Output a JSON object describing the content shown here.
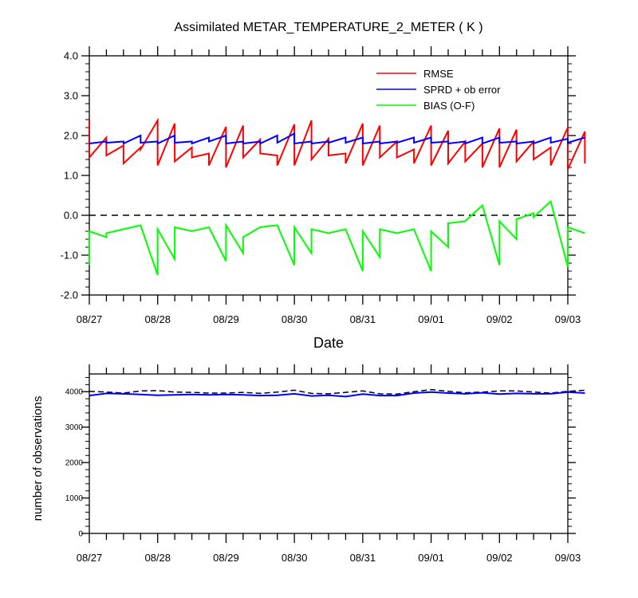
{
  "chart_data": [
    {
      "type": "line",
      "title": "Assimilated METAR_TEMPERATURE_2_METER ( K )",
      "xlabel": "Date",
      "ylabel": "",
      "xlim": [
        "08/27",
        "09/03"
      ],
      "ylim": [
        -2.0,
        4.0
      ],
      "x_ticks": [
        "08/27",
        "08/28",
        "08/29",
        "08/30",
        "08/31",
        "09/01",
        "09/02",
        "09/03"
      ],
      "y_ticks": [
        "-2.0",
        "-1.0",
        "0.0",
        "1.0",
        "2.0",
        "3.0",
        "4.0"
      ],
      "legend_position": "top-right",
      "zero_reference_line": {
        "y": 0.0,
        "style": "dashed",
        "color": "#000000"
      },
      "series": [
        {
          "name": "RMSE",
          "color": "#ff0000",
          "points": [
            [
              "08/27 00:00",
              2.4
            ],
            [
              "08/27 00:00",
              1.45
            ],
            [
              "08/27 06:00",
              1.95
            ],
            [
              "08/27 06:00",
              1.5
            ],
            [
              "08/27 12:00",
              1.75
            ],
            [
              "08/27 12:00",
              1.3
            ],
            [
              "08/27 18:00",
              1.7
            ],
            [
              "08/27 18:00",
              1.65
            ],
            [
              "08/28 00:00",
              2.38
            ],
            [
              "08/28 00:00",
              1.25
            ],
            [
              "08/28 06:00",
              2.3
            ],
            [
              "08/28 06:00",
              1.35
            ],
            [
              "08/28 12:00",
              1.7
            ],
            [
              "08/28 12:00",
              1.45
            ],
            [
              "08/28 18:00",
              1.55
            ],
            [
              "08/28 18:00",
              1.25
            ],
            [
              "08/29 00:00",
              2.22
            ],
            [
              "08/29 00:00",
              1.2
            ],
            [
              "08/29 06:00",
              2.25
            ],
            [
              "08/29 06:00",
              1.45
            ],
            [
              "08/29 12:00",
              1.9
            ],
            [
              "08/29 12:00",
              1.55
            ],
            [
              "08/29 18:00",
              1.5
            ],
            [
              "08/29 18:00",
              1.25
            ],
            [
              "08/30 00:00",
              2.28
            ],
            [
              "08/30 00:00",
              1.25
            ],
            [
              "08/30 06:00",
              2.38
            ],
            [
              "08/30 06:00",
              1.4
            ],
            [
              "08/30 12:00",
              1.92
            ],
            [
              "08/30 12:00",
              1.5
            ],
            [
              "08/30 18:00",
              1.55
            ],
            [
              "08/30 18:00",
              1.3
            ],
            [
              "08/31 00:00",
              2.3
            ],
            [
              "08/31 00:00",
              1.25
            ],
            [
              "08/31 06:00",
              2.25
            ],
            [
              "08/31 06:00",
              1.45
            ],
            [
              "08/31 12:00",
              1.85
            ],
            [
              "08/31 12:00",
              1.45
            ],
            [
              "08/31 18:00",
              1.65
            ],
            [
              "08/31 18:00",
              1.3
            ],
            [
              "09/01 00:00",
              2.25
            ],
            [
              "09/01 00:00",
              1.25
            ],
            [
              "09/01 06:00",
              2.12
            ],
            [
              "09/01 06:00",
              1.3
            ],
            [
              "09/01 12:00",
              1.85
            ],
            [
              "09/01 12:00",
              1.35
            ],
            [
              "09/01 18:00",
              1.8
            ],
            [
              "09/01 18:00",
              1.2
            ],
            [
              "09/02 00:00",
              2.18
            ],
            [
              "09/02 00:00",
              1.2
            ],
            [
              "09/02 06:00",
              2.15
            ],
            [
              "09/02 06:00",
              1.35
            ],
            [
              "09/02 12:00",
              1.85
            ],
            [
              "09/02 12:00",
              1.4
            ],
            [
              "09/02 18:00",
              1.7
            ],
            [
              "09/02 18:00",
              1.25
            ],
            [
              "09/03 00:00",
              2.2
            ],
            [
              "09/03 00:00",
              1.15
            ],
            [
              "09/03 06:00",
              2.1
            ],
            [
              "09/03 06:00",
              1.3
            ]
          ]
        },
        {
          "name": "SPRD + ob error",
          "color": "#0000ff",
          "points": [
            [
              "08/27 00:00",
              1.8
            ],
            [
              "08/27 06:00",
              1.85
            ],
            [
              "08/27 06:00",
              1.82
            ],
            [
              "08/27 12:00",
              1.85
            ],
            [
              "08/27 12:00",
              1.8
            ],
            [
              "08/27 18:00",
              2.0
            ],
            [
              "08/27 18:00",
              1.82
            ],
            [
              "08/28 00:00",
              1.85
            ],
            [
              "08/28 00:00",
              1.8
            ],
            [
              "08/28 06:00",
              2.0
            ],
            [
              "08/28 06:00",
              1.82
            ],
            [
              "08/28 12:00",
              1.85
            ],
            [
              "08/28 12:00",
              1.8
            ],
            [
              "08/28 18:00",
              1.95
            ],
            [
              "08/28 18:00",
              1.85
            ],
            [
              "08/29 00:00",
              2.0
            ],
            [
              "08/29 00:00",
              1.8
            ],
            [
              "08/29 06:00",
              1.85
            ],
            [
              "08/29 06:00",
              1.8
            ],
            [
              "08/29 12:00",
              1.85
            ],
            [
              "08/29 12:00",
              1.8
            ],
            [
              "08/29 18:00",
              2.0
            ],
            [
              "08/29 18:00",
              1.82
            ],
            [
              "08/30 00:00",
              2.05
            ],
            [
              "08/30 00:00",
              1.8
            ],
            [
              "08/30 06:00",
              1.85
            ],
            [
              "08/30 06:00",
              1.8
            ],
            [
              "08/30 12:00",
              1.85
            ],
            [
              "08/30 12:00",
              1.82
            ],
            [
              "08/30 18:00",
              1.95
            ],
            [
              "08/30 18:00",
              1.82
            ],
            [
              "08/31 00:00",
              1.95
            ],
            [
              "08/31 00:00",
              1.8
            ],
            [
              "08/31 06:00",
              1.85
            ],
            [
              "08/31 06:00",
              1.8
            ],
            [
              "08/31 12:00",
              1.85
            ],
            [
              "08/31 12:00",
              1.82
            ],
            [
              "08/31 18:00",
              1.95
            ],
            [
              "08/31 18:00",
              1.82
            ],
            [
              "09/01 00:00",
              1.95
            ],
            [
              "09/01 00:00",
              1.82
            ],
            [
              "09/01 06:00",
              1.85
            ],
            [
              "09/01 06:00",
              1.8
            ],
            [
              "09/01 12:00",
              1.85
            ],
            [
              "09/01 12:00",
              1.8
            ],
            [
              "09/01 18:00",
              1.95
            ],
            [
              "09/01 18:00",
              1.8
            ],
            [
              "09/02 00:00",
              1.95
            ],
            [
              "09/02 00:00",
              1.82
            ],
            [
              "09/02 06:00",
              1.85
            ],
            [
              "09/02 06:00",
              1.8
            ],
            [
              "09/02 12:00",
              1.85
            ],
            [
              "09/02 12:00",
              1.8
            ],
            [
              "09/02 18:00",
              1.95
            ],
            [
              "09/02 18:00",
              1.82
            ],
            [
              "09/03 00:00",
              1.92
            ],
            [
              "09/03 00:00",
              1.82
            ],
            [
              "09/03 06:00",
              1.95
            ]
          ]
        },
        {
          "name": "BIAS (O-F)",
          "color": "#00ff00",
          "points": [
            [
              "08/27 00:00",
              -1.25
            ],
            [
              "08/27 00:00",
              -0.4
            ],
            [
              "08/27 06:00",
              -0.55
            ],
            [
              "08/27 06:00",
              -0.45
            ],
            [
              "08/27 12:00",
              -0.35
            ],
            [
              "08/27 18:00",
              -0.25
            ],
            [
              "08/28 00:00",
              -1.5
            ],
            [
              "08/28 00:00",
              -0.35
            ],
            [
              "08/28 06:00",
              -1.1
            ],
            [
              "08/28 06:00",
              -0.3
            ],
            [
              "08/28 12:00",
              -0.4
            ],
            [
              "08/28 18:00",
              -0.3
            ],
            [
              "08/29 00:00",
              -1.15
            ],
            [
              "08/29 00:00",
              -0.25
            ],
            [
              "08/29 06:00",
              -0.95
            ],
            [
              "08/29 06:00",
              -0.55
            ],
            [
              "08/29 12:00",
              -0.3
            ],
            [
              "08/29 18:00",
              -0.25
            ],
            [
              "08/30 00:00",
              -1.25
            ],
            [
              "08/30 00:00",
              -0.3
            ],
            [
              "08/30 06:00",
              -0.95
            ],
            [
              "08/30 06:00",
              -0.35
            ],
            [
              "08/30 12:00",
              -0.45
            ],
            [
              "08/30 18:00",
              -0.35
            ],
            [
              "08/31 00:00",
              -1.4
            ],
            [
              "08/31 00:00",
              -0.4
            ],
            [
              "08/31 06:00",
              -1.05
            ],
            [
              "08/31 06:00",
              -0.35
            ],
            [
              "08/31 12:00",
              -0.45
            ],
            [
              "08/31 18:00",
              -0.35
            ],
            [
              "09/01 00:00",
              -1.4
            ],
            [
              "09/01 00:00",
              -0.4
            ],
            [
              "09/01 06:00",
              -0.8
            ],
            [
              "09/01 06:00",
              -0.2
            ],
            [
              "09/01 12:00",
              -0.15
            ],
            [
              "09/01 18:00",
              0.25
            ],
            [
              "09/02 00:00",
              -1.25
            ],
            [
              "09/02 00:00",
              -0.15
            ],
            [
              "09/02 06:00",
              -0.6
            ],
            [
              "09/02 06:00",
              -0.1
            ],
            [
              "09/02 12:00",
              0.05
            ],
            [
              "09/02 12:00",
              -0.05
            ],
            [
              "09/02 18:00",
              0.35
            ],
            [
              "09/03 00:00",
              -1.3
            ],
            [
              "09/03 00:00",
              -0.3
            ],
            [
              "09/03 06:00",
              -0.45
            ]
          ]
        }
      ]
    },
    {
      "type": "line",
      "title": "",
      "xlabel": "",
      "ylabel": "number of observations",
      "xlim": [
        "08/27",
        "09/03"
      ],
      "ylim": [
        0,
        4500
      ],
      "x_ticks": [
        "08/27",
        "08/28",
        "08/29",
        "08/30",
        "08/31",
        "09/01",
        "09/02",
        "09/03"
      ],
      "y_ticks": [
        "0",
        "1000",
        "2000",
        "3000",
        "4000"
      ],
      "grid": false,
      "series": [
        {
          "color": "#000000",
          "style": "dashed",
          "x": [
            "08/27 00:00",
            "08/27 06:00",
            "08/27 12:00",
            "08/27 18:00",
            "08/28 00:00",
            "08/28 06:00",
            "08/28 12:00",
            "08/28 18:00",
            "08/29 00:00",
            "08/29 06:00",
            "08/29 12:00",
            "08/29 18:00",
            "08/30 00:00",
            "08/30 06:00",
            "08/30 12:00",
            "08/30 18:00",
            "08/31 00:00",
            "08/31 06:00",
            "08/31 12:00",
            "08/31 18:00",
            "09/01 00:00",
            "09/01 06:00",
            "09/01 12:00",
            "09/01 18:00",
            "09/02 00:00",
            "09/02 06:00",
            "09/02 12:00",
            "09/02 18:00",
            "09/03 00:00",
            "09/03 06:00"
          ],
          "values": [
            4010,
            3990,
            3960,
            4020,
            4030,
            3990,
            3980,
            3960,
            3960,
            3980,
            3950,
            3990,
            4040,
            3950,
            3940,
            3980,
            4020,
            3940,
            3930,
            4000,
            4060,
            4010,
            3970,
            3990,
            4020,
            4020,
            3990,
            3960,
            4010,
            4040
          ]
        },
        {
          "color": "#0000ff",
          "style": "solid",
          "x": [
            "08/27 00:00",
            "08/27 06:00",
            "08/27 12:00",
            "08/27 18:00",
            "08/28 00:00",
            "08/28 06:00",
            "08/28 12:00",
            "08/28 18:00",
            "08/29 00:00",
            "08/29 06:00",
            "08/29 12:00",
            "08/29 18:00",
            "08/30 00:00",
            "08/30 06:00",
            "08/30 12:00",
            "08/30 18:00",
            "08/31 00:00",
            "08/31 06:00",
            "08/31 12:00",
            "08/31 18:00",
            "09/01 00:00",
            "09/01 06:00",
            "09/01 12:00",
            "09/01 18:00",
            "09/02 00:00",
            "09/02 06:00",
            "09/02 12:00",
            "09/02 18:00",
            "09/03 00:00",
            "09/03 06:00"
          ],
          "values": [
            3890,
            3950,
            3940,
            3920,
            3900,
            3910,
            3920,
            3910,
            3920,
            3910,
            3890,
            3900,
            3940,
            3880,
            3900,
            3860,
            3930,
            3890,
            3890,
            3960,
            3990,
            3960,
            3940,
            3970,
            3930,
            3950,
            3940,
            3940,
            3990,
            3960
          ]
        }
      ]
    }
  ]
}
